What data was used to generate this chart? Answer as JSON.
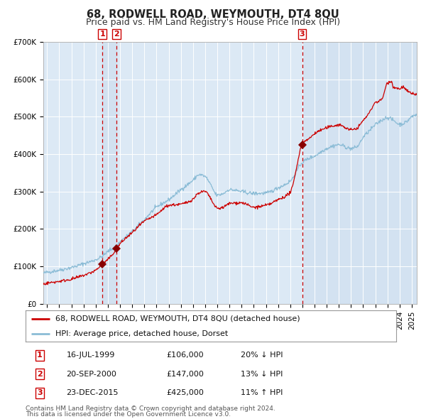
{
  "title": "68, RODWELL ROAD, WEYMOUTH, DT4 8QU",
  "subtitle": "Price paid vs. HM Land Registry's House Price Index (HPI)",
  "ylim": [
    0,
    700000
  ],
  "yticks": [
    0,
    100000,
    200000,
    300000,
    400000,
    500000,
    600000,
    700000
  ],
  "ytick_labels": [
    "£0",
    "£100K",
    "£200K",
    "£300K",
    "£400K",
    "£500K",
    "£600K",
    "£700K"
  ],
  "xlim_start": 1994.7,
  "xlim_end": 2025.4,
  "plot_bg_color": "#dce9f5",
  "grid_color": "#ffffff",
  "red_line_color": "#cc0000",
  "blue_line_color": "#8bbcd6",
  "sale_marker_color": "#880000",
  "sale1_x": 1999.54,
  "sale1_y": 106000,
  "sale1_label": "1",
  "sale1_date": "16-JUL-1999",
  "sale1_price": "£106,000",
  "sale1_hpi": "20% ↓ HPI",
  "sale2_x": 2000.72,
  "sale2_y": 147000,
  "sale2_label": "2",
  "sale2_date": "20-SEP-2000",
  "sale2_price": "£147,000",
  "sale2_hpi": "13% ↓ HPI",
  "sale3_x": 2015.98,
  "sale3_y": 425000,
  "sale3_label": "3",
  "sale3_date": "23-DEC-2015",
  "sale3_price": "£425,000",
  "sale3_hpi": "11% ↑ HPI",
  "legend_red_label": "68, RODWELL ROAD, WEYMOUTH, DT4 8QU (detached house)",
  "legend_blue_label": "HPI: Average price, detached house, Dorset",
  "footer1": "Contains HM Land Registry data © Crown copyright and database right 2024.",
  "footer2": "This data is licensed under the Open Government Licence v3.0.",
  "title_fontsize": 10.5,
  "subtitle_fontsize": 9,
  "tick_fontsize": 7.5,
  "legend_fontsize": 8,
  "footer_fontsize": 6.5
}
